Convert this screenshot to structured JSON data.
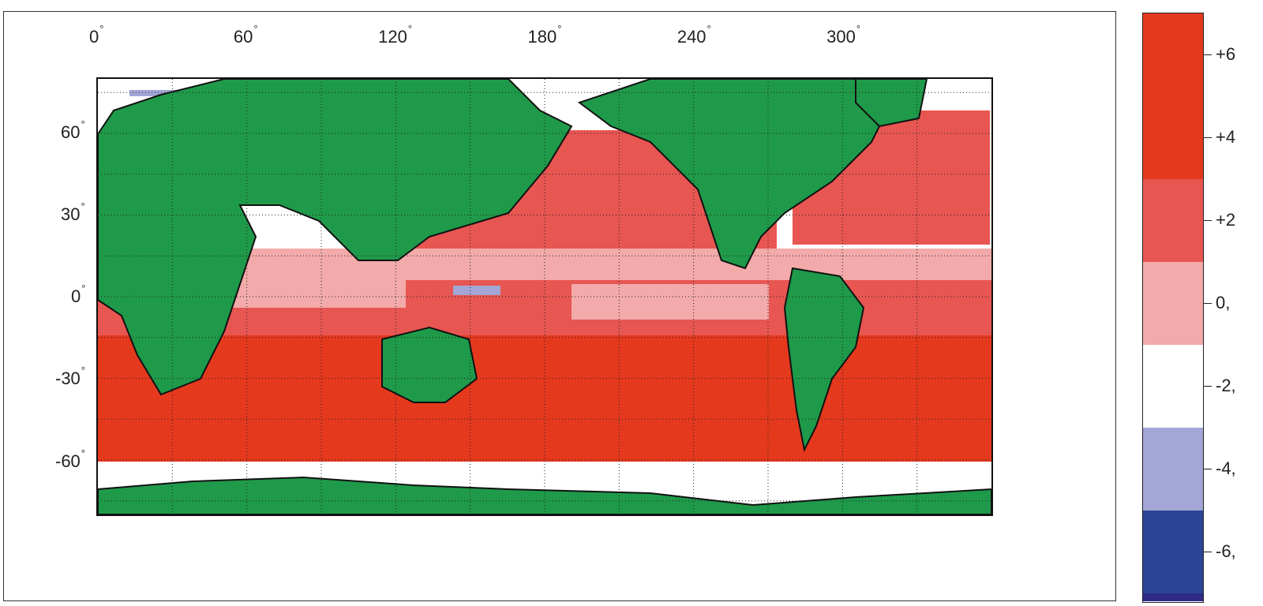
{
  "map": {
    "lon_ticks": [
      {
        "value": 0,
        "label": "0"
      },
      {
        "value": 60,
        "label": "60"
      },
      {
        "value": 120,
        "label": "120"
      },
      {
        "value": 180,
        "label": "180"
      },
      {
        "value": 240,
        "label": "240"
      },
      {
        "value": 300,
        "label": "300"
      }
    ],
    "lat_ticks": [
      {
        "value": 60,
        "label": "60"
      },
      {
        "value": 30,
        "label": "30"
      },
      {
        "value": 0,
        "label": "0"
      },
      {
        "value": -30,
        "label": "-30"
      },
      {
        "value": -60,
        "label": "-60"
      }
    ],
    "degree_symbol": "°",
    "lon_range": [
      0,
      360
    ],
    "lat_range": [
      -80,
      80
    ],
    "gridlines": "dotted",
    "land_color": "#1f9a4a",
    "coastline_color": "#111111"
  },
  "colorbar": {
    "bins": [
      {
        "label": "+6",
        "color": "#e5391e"
      },
      {
        "label": "+4",
        "color": "#e85652"
      },
      {
        "label": "+2",
        "color": "#f2aaaa"
      },
      {
        "label": "0,",
        "color": "#ffffff"
      },
      {
        "label": "-2,",
        "color": "#a3a6d6"
      },
      {
        "label": "-4,",
        "color": "#2d4496"
      },
      {
        "label": "-6,",
        "color": "#2e2a86"
      }
    ],
    "extra_color": "#e5391e"
  }
}
